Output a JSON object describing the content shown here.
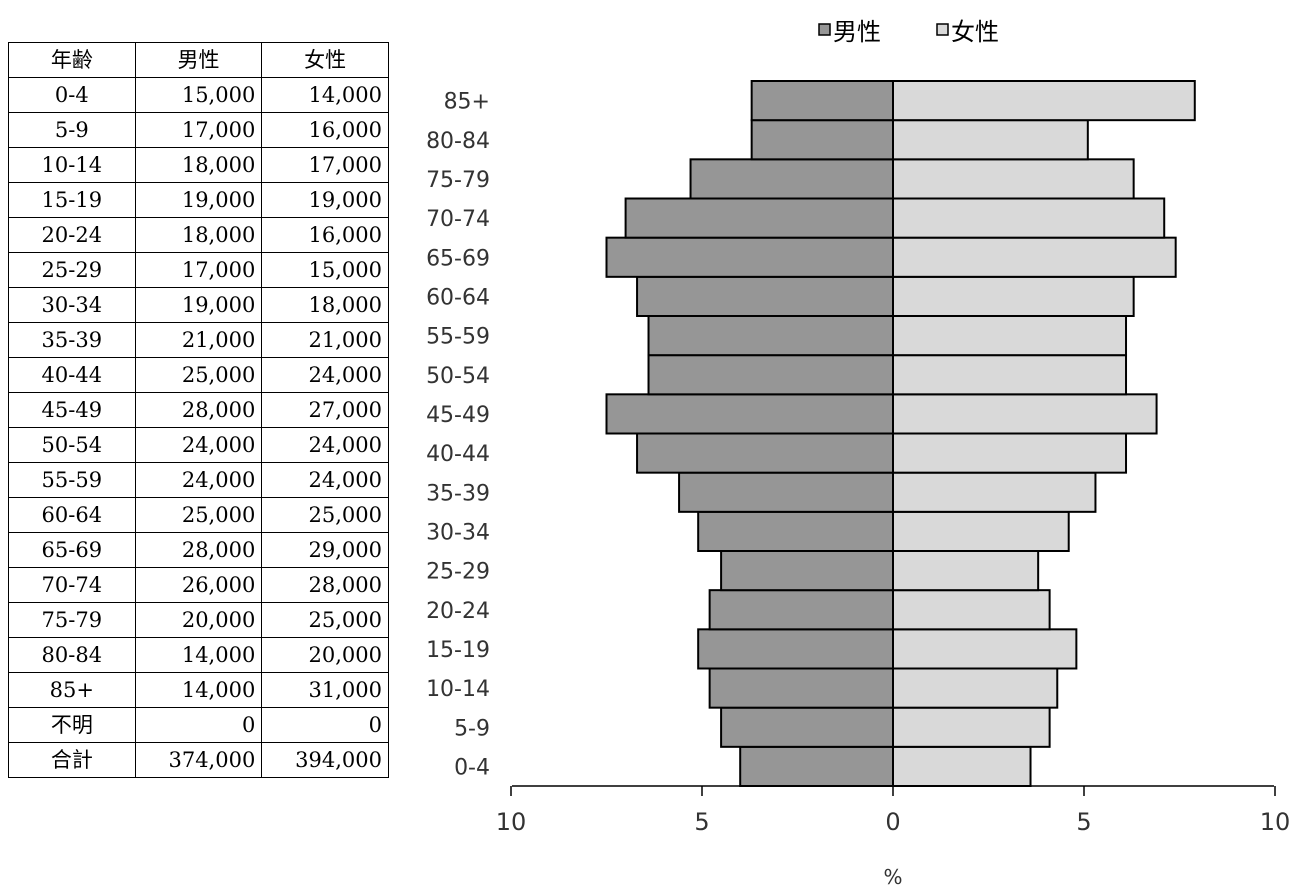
{
  "table": {
    "headers": [
      "年齢",
      "男性",
      "女性"
    ],
    "rows": [
      [
        "0-4",
        "15,000",
        "14,000"
      ],
      [
        "5-9",
        "17,000",
        "16,000"
      ],
      [
        "10-14",
        "18,000",
        "17,000"
      ],
      [
        "15-19",
        "19,000",
        "19,000"
      ],
      [
        "20-24",
        "18,000",
        "16,000"
      ],
      [
        "25-29",
        "17,000",
        "15,000"
      ],
      [
        "30-34",
        "19,000",
        "18,000"
      ],
      [
        "35-39",
        "21,000",
        "21,000"
      ],
      [
        "40-44",
        "25,000",
        "24,000"
      ],
      [
        "45-49",
        "28,000",
        "27,000"
      ],
      [
        "50-54",
        "24,000",
        "24,000"
      ],
      [
        "55-59",
        "24,000",
        "24,000"
      ],
      [
        "60-64",
        "25,000",
        "25,000"
      ],
      [
        "65-69",
        "28,000",
        "29,000"
      ],
      [
        "70-74",
        "26,000",
        "28,000"
      ],
      [
        "75-79",
        "20,000",
        "25,000"
      ],
      [
        "80-84",
        "14,000",
        "20,000"
      ],
      [
        "85+",
        "14,000",
        "31,000"
      ],
      [
        "不明",
        "0",
        "0"
      ],
      [
        "合計",
        "374,000",
        "394,000"
      ]
    ]
  },
  "chart_data": {
    "type": "bar",
    "orientation": "horizontal-pyramid",
    "categories": [
      "0-4",
      "5-9",
      "10-14",
      "15-19",
      "20-24",
      "25-29",
      "30-34",
      "35-39",
      "40-44",
      "45-49",
      "50-54",
      "55-59",
      "60-64",
      "65-69",
      "70-74",
      "75-79",
      "80-84",
      "85+"
    ],
    "series": [
      {
        "name": "男性",
        "color": "#969696",
        "values": [
          4.0,
          4.5,
          4.8,
          5.1,
          4.8,
          4.5,
          5.1,
          5.6,
          6.7,
          7.5,
          6.4,
          6.4,
          6.7,
          7.5,
          7.0,
          5.3,
          3.7,
          3.7
        ]
      },
      {
        "name": "女性",
        "color": "#d9d9d9",
        "values": [
          3.6,
          4.1,
          4.3,
          4.8,
          4.1,
          3.8,
          4.6,
          5.3,
          6.1,
          6.9,
          6.1,
          6.1,
          6.3,
          7.4,
          7.1,
          6.3,
          5.1,
          7.9
        ]
      }
    ],
    "xlabel": "%",
    "xlim": [
      -10,
      10
    ],
    "xticks": [
      -10,
      -5,
      0,
      5,
      10
    ],
    "xtick_labels": [
      "10",
      "5",
      "0",
      "5",
      "10"
    ],
    "legend": {
      "position": "top"
    }
  }
}
